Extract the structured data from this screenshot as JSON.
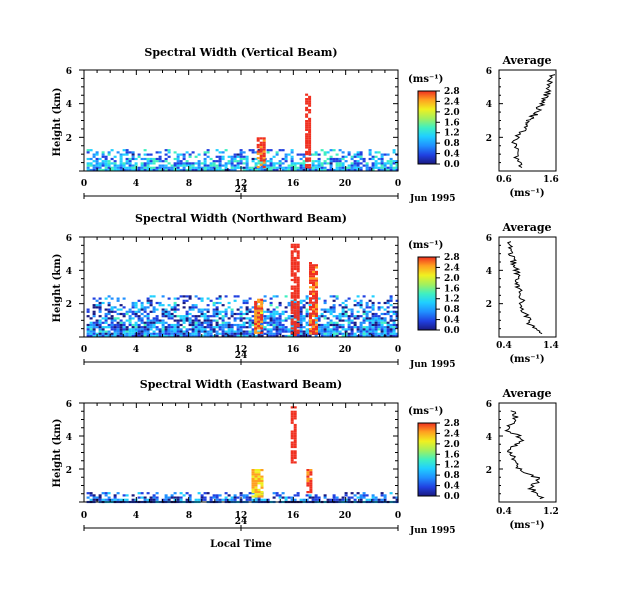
{
  "x_axis_label": "Local Time",
  "date_label": "Jun 1995",
  "colorbar_units": "(ms⁻¹)",
  "panels": [
    {
      "title": "Spectral Width (Vertical Beam)",
      "ylabel": "Height (km)",
      "y_ticks": [
        "6",
        "4",
        "2"
      ],
      "x_ticks": [
        "0",
        "4",
        "8",
        "12",
        "16",
        "20",
        "0"
      ],
      "day_tick": "24",
      "colorbar_ticks": [
        "0.0",
        "0.4",
        "0.8",
        "1.2",
        "1.6",
        "2.0",
        "2.4",
        "2.8"
      ],
      "average_title": "Average",
      "average_x_ticks": [
        "0.6",
        "1.6"
      ],
      "average_x_units": "(ms⁻¹)",
      "average_y_ticks": [
        "6",
        "4",
        "2"
      ]
    },
    {
      "title": "Spectral Width (Northward Beam)",
      "ylabel": "Height (km)",
      "y_ticks": [
        "6",
        "4",
        "2"
      ],
      "x_ticks": [
        "0",
        "4",
        "8",
        "12",
        "16",
        "20",
        "0"
      ],
      "day_tick": "24",
      "colorbar_ticks": [
        "0.0",
        "0.4",
        "0.8",
        "1.2",
        "1.6",
        "2.0",
        "2.4",
        "2.8"
      ],
      "average_title": "Average",
      "average_x_ticks": [
        "0.4",
        "1.4"
      ],
      "average_x_units": "(ms⁻¹)",
      "average_y_ticks": [
        "6",
        "4",
        "2"
      ]
    },
    {
      "title": "Spectral Width (Eastward Beam)",
      "ylabel": "Height (km)",
      "y_ticks": [
        "6",
        "4",
        "2"
      ],
      "x_ticks": [
        "0",
        "4",
        "8",
        "12",
        "16",
        "20",
        "0"
      ],
      "day_tick": "24",
      "colorbar_ticks": [
        "0.0",
        "0.4",
        "0.8",
        "1.2",
        "1.6",
        "2.0",
        "2.4",
        "2.8"
      ],
      "average_title": "Average",
      "average_x_ticks": [
        "0.4",
        "1.2"
      ],
      "average_x_units": "(ms⁻¹)",
      "average_y_ticks": [
        "6",
        "4",
        "2"
      ]
    }
  ],
  "chart_data": [
    {
      "type": "heatmap",
      "title": "Spectral Width (Vertical Beam)",
      "ylabel": "Height (km)",
      "xlabel": "Local Time",
      "xlim": [
        0,
        24
      ],
      "ylim": [
        0,
        6
      ],
      "colorbar_range": [
        0.0,
        2.8
      ],
      "color_scale": [
        "#1a1a80",
        "#2040e0",
        "#2090ff",
        "#20d0ff",
        "#40f0c0",
        "#a0f060",
        "#f0f020",
        "#ffa020",
        "#f03020"
      ],
      "features": [
        {
          "x_range": [
            0.2,
            24
          ],
          "height_range": [
            0.1,
            1.3
          ],
          "typical_width": 0.9
        },
        {
          "x_range": [
            13.2,
            13.8
          ],
          "height_range": [
            0.2,
            2.0
          ],
          "typical_width": 2.6
        },
        {
          "x_range": [
            16.9,
            17.3
          ],
          "height_range": [
            0.2,
            4.6
          ],
          "typical_width": 2.8
        }
      ]
    },
    {
      "type": "line",
      "title": "Average",
      "xlabel": "(ms⁻¹)",
      "ylabel": "",
      "xlim": [
        0.6,
        1.6
      ],
      "ylim": [
        0,
        6
      ],
      "x": [
        0.95,
        0.92,
        0.88,
        1.05,
        1.1,
        1.25,
        1.35,
        1.45,
        1.5,
        1.55
      ],
      "y": [
        0.2,
        1.0,
        1.8,
        2.6,
        3.0,
        3.4,
        4.0,
        4.6,
        5.2,
        5.8
      ]
    },
    {
      "type": "heatmap",
      "title": "Spectral Width (Northward Beam)",
      "ylabel": "Height (km)",
      "xlabel": "Local Time",
      "xlim": [
        0,
        24
      ],
      "ylim": [
        0,
        6
      ],
      "colorbar_range": [
        0.0,
        2.8
      ],
      "color_scale": [
        "#1a1a80",
        "#2040e0",
        "#2090ff",
        "#20d0ff",
        "#40f0c0",
        "#a0f060",
        "#f0f020",
        "#ffa020",
        "#f03020"
      ],
      "features": [
        {
          "x_range": [
            0.2,
            24
          ],
          "height_range": [
            0.1,
            2.5
          ],
          "typical_width": 0.7
        },
        {
          "x_range": [
            13.0,
            13.6
          ],
          "height_range": [
            0.2,
            2.3
          ],
          "typical_width": 2.4
        },
        {
          "x_range": [
            15.8,
            16.3
          ],
          "height_range": [
            0.1,
            5.6
          ],
          "typical_width": 2.8
        },
        {
          "x_range": [
            17.2,
            17.8
          ],
          "height_range": [
            0.2,
            4.5
          ],
          "typical_width": 2.6
        }
      ]
    },
    {
      "type": "line",
      "title": "Average",
      "xlabel": "(ms⁻¹)",
      "ylabel": "",
      "xlim": [
        0.4,
        1.4
      ],
      "ylim": [
        0,
        6
      ],
      "x": [
        1.1,
        0.95,
        0.85,
        0.8,
        0.75,
        0.72,
        0.7,
        0.65,
        0.6,
        0.55
      ],
      "y": [
        0.2,
        0.8,
        1.5,
        2.2,
        3.0,
        3.5,
        4.0,
        4.6,
        5.2,
        5.8
      ]
    },
    {
      "type": "heatmap",
      "title": "Spectral Width (Eastward Beam)",
      "ylabel": "Height (km)",
      "xlabel": "Local Time",
      "xlim": [
        0,
        24
      ],
      "ylim": [
        0,
        6
      ],
      "colorbar_range": [
        0.0,
        2.8
      ],
      "color_scale": [
        "#1a1a80",
        "#2040e0",
        "#2090ff",
        "#20d0ff",
        "#40f0c0",
        "#a0f060",
        "#f0f020",
        "#ffa020",
        "#f03020"
      ],
      "features": [
        {
          "x_range": [
            0.2,
            24
          ],
          "height_range": [
            0.05,
            0.6
          ],
          "typical_width": 0.6
        },
        {
          "x_range": [
            12.8,
            13.6
          ],
          "height_range": [
            0.3,
            2.0
          ],
          "typical_width": 2.2
        },
        {
          "x_range": [
            15.8,
            16.2
          ],
          "height_range": [
            2.4,
            5.8
          ],
          "typical_width": 2.8
        },
        {
          "x_range": [
            17.0,
            17.3
          ],
          "height_range": [
            0.6,
            2.0
          ],
          "typical_width": 2.6
        }
      ]
    },
    {
      "type": "line",
      "title": "Average",
      "xlabel": "(ms⁻¹)",
      "ylabel": "",
      "xlim": [
        0.4,
        1.2
      ],
      "ylim": [
        0,
        6
      ],
      "x": [
        1.0,
        0.85,
        0.95,
        0.7,
        0.6,
        0.55,
        0.75,
        0.5,
        0.65,
        0.6
      ],
      "y": [
        0.2,
        0.8,
        1.4,
        2.0,
        2.6,
        3.2,
        3.8,
        4.4,
        5.0,
        5.6
      ]
    }
  ]
}
